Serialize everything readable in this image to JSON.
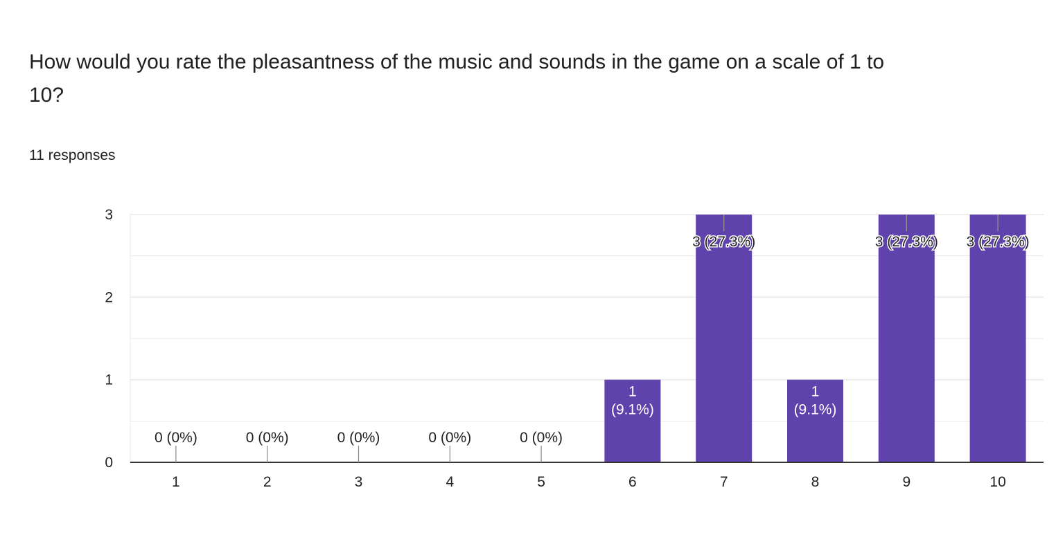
{
  "question": {
    "title": "How would you rate the pleasantness of the music and sounds in the game on a scale of 1 to 10?",
    "response_count": "11 responses"
  },
  "colors": {
    "bar": "#5f42ac",
    "gridline": "#e8e8e8",
    "axis": "#333333",
    "label_outside": "#222222",
    "label_inside": "#ffffff"
  },
  "chart_data": {
    "type": "bar",
    "categories": [
      "1",
      "2",
      "3",
      "4",
      "5",
      "6",
      "7",
      "8",
      "9",
      "10"
    ],
    "values": [
      0,
      0,
      0,
      0,
      0,
      1,
      3,
      1,
      3,
      3
    ],
    "data_labels": [
      "0 (0%)",
      "0 (0%)",
      "0 (0%)",
      "0 (0%)",
      "0 (0%)",
      "1 (9.1%)",
      "3 (27.3%)",
      "1 (9.1%)",
      "3 (27.3%)",
      "3 (27.3%)"
    ],
    "y_ticks": [
      "0",
      "1",
      "2",
      "3"
    ],
    "ylim": [
      0,
      3
    ],
    "title": "",
    "xlabel": "",
    "ylabel": "",
    "grid": true,
    "legend": "none"
  }
}
